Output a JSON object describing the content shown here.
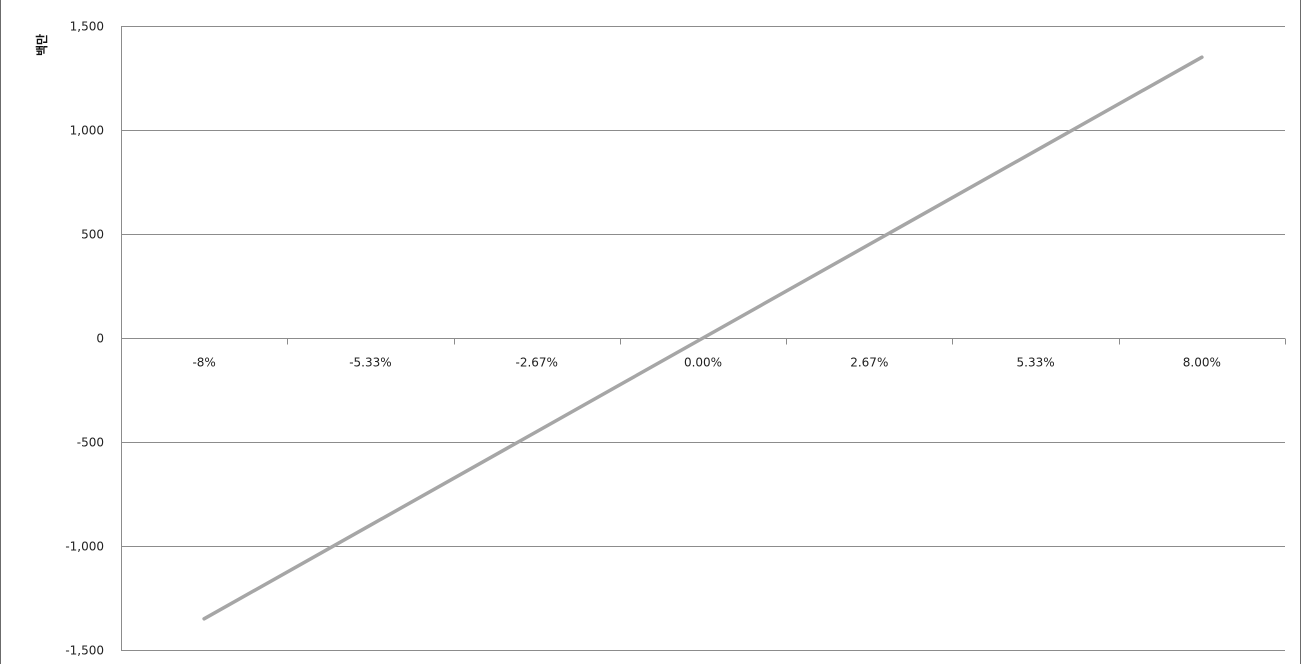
{
  "chart_data": {
    "type": "line",
    "title": "",
    "xlabel": "",
    "ylabel": "백만",
    "categories": [
      "-8%",
      "-5.33%",
      "-2.67%",
      "0.00%",
      "2.67%",
      "5.33%",
      "8.00%"
    ],
    "series": [
      {
        "values": [
          -1350,
          -900,
          -450,
          0,
          450,
          900,
          1350
        ]
      }
    ],
    "ylim": [
      -1500,
      1500
    ],
    "ytick_values": [
      1500,
      1000,
      500,
      0,
      -500,
      -1000,
      -1500
    ],
    "ytick_labels": [
      "1,500",
      "1,000",
      "500",
      "0",
      "-500",
      "-1,000",
      "-1,500"
    ],
    "grid": true,
    "legend": "none",
    "colors": {
      "line": "#a6a6a6",
      "grid": "#8c8c8c",
      "axis": "#8c8c8c"
    }
  }
}
